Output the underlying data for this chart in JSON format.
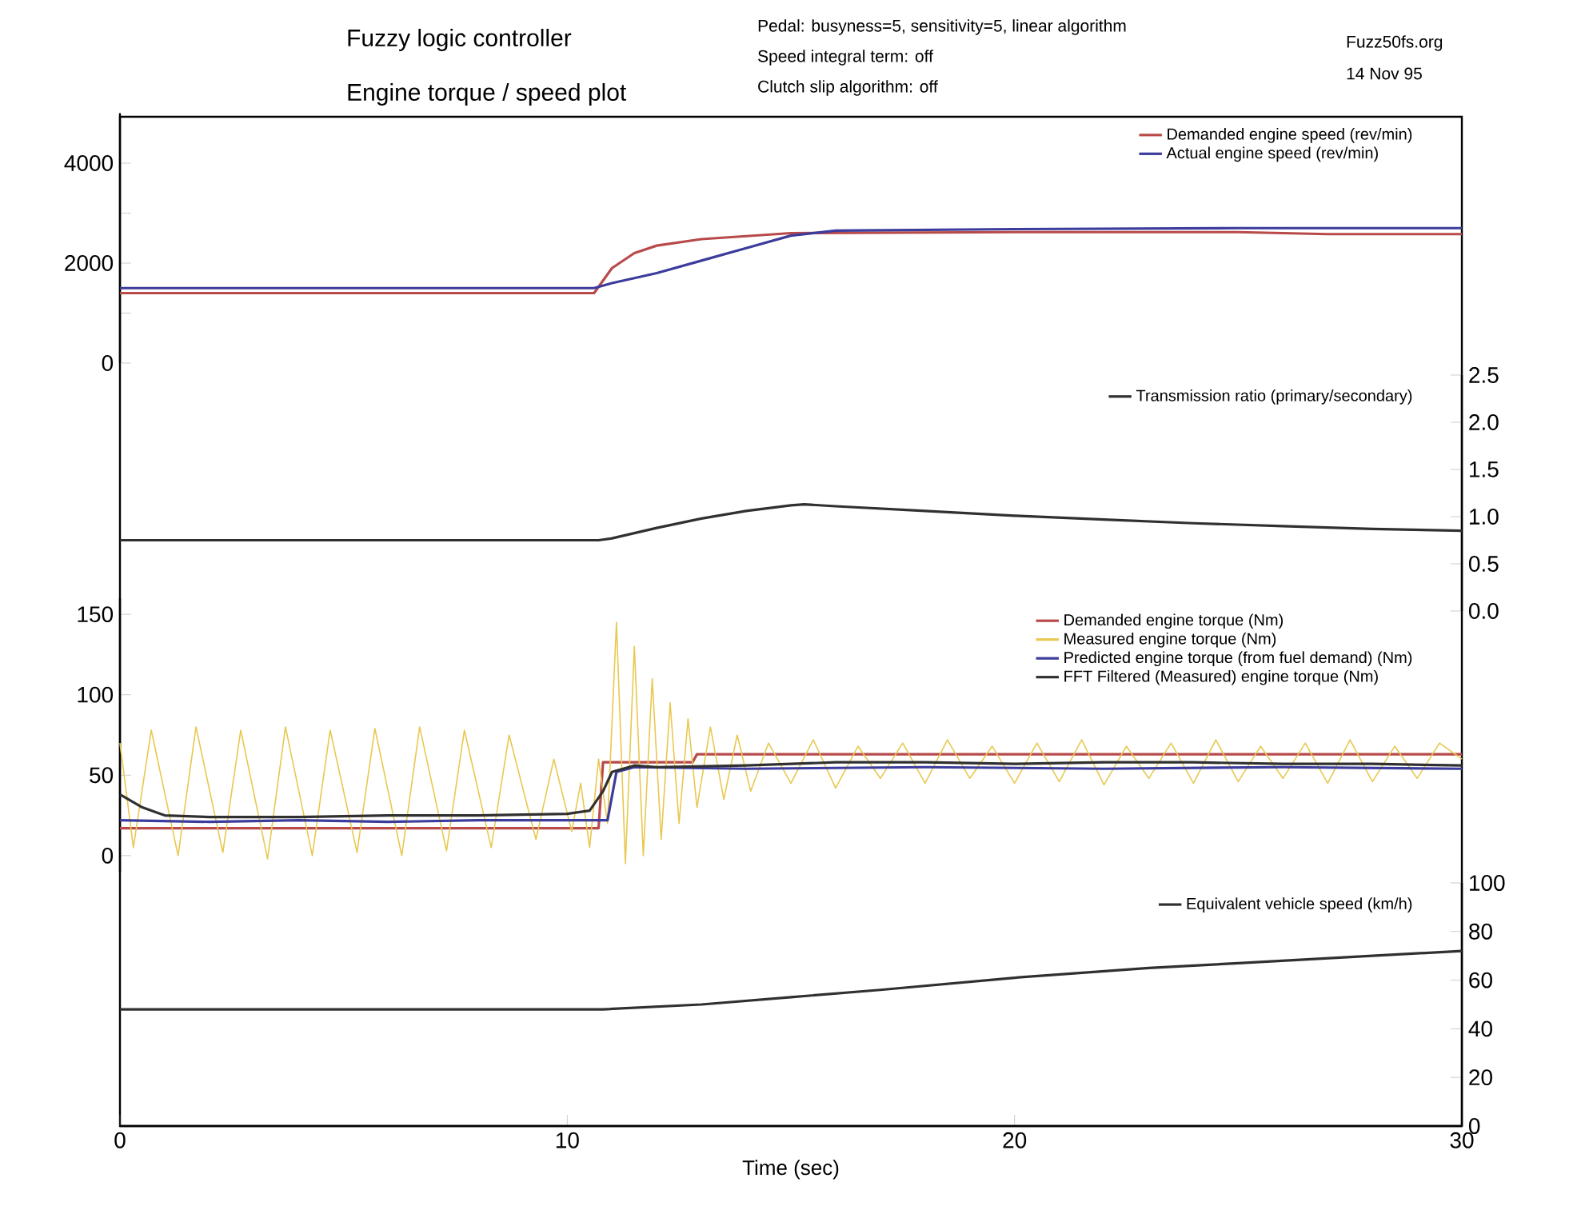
{
  "chart_data": [
    {
      "type": "line",
      "title": "Fuzzy logic controller",
      "subtitle": "Engine torque / speed plot",
      "annotations": [
        "Pedal: busyness=5, sensitivity=5, linear algorithm",
        "Speed integral term: off",
        "Clutch slip algorithm: off",
        "Fuzz50fs.org",
        "14 Nov 95"
      ],
      "xlim": [
        0,
        30
      ],
      "ylim": [
        0,
        5000
      ],
      "yticks": [
        0,
        {
          "value": 1000,
          "label": null
        },
        2000,
        {
          "value": 3000,
          "label": null
        },
        4000
      ],
      "tick_labels": "y",
      "legend": "top right",
      "marker": "none",
      "series": [
        {
          "name": "Demanded engine speed (rev/min)",
          "color": "#b84a4a",
          "x": [
            0,
            10.6,
            11,
            11.5,
            12,
            13,
            14,
            15,
            20,
            25,
            27,
            30
          ],
          "values": [
            1400,
            1400,
            1900,
            2200,
            2350,
            2480,
            2540,
            2600,
            2620,
            2620,
            2580,
            2580
          ]
        },
        {
          "name": "Actual engine speed (rev/min)",
          "color": "#3c3c9c",
          "x": [
            0,
            10.6,
            11,
            12,
            13,
            14,
            15,
            16,
            20,
            25,
            30
          ],
          "values": [
            1500,
            1500,
            1600,
            1800,
            2050,
            2300,
            2550,
            2650,
            2680,
            2700,
            2700
          ]
        }
      ]
    },
    {
      "type": "line",
      "xlim": [
        0,
        30
      ],
      "y2lim": [
        0,
        2.5
      ],
      "y2ticks": [
        {
          "value": 0,
          "label": "0.0"
        },
        {
          "value": 0.5,
          "label": "0.5"
        },
        {
          "value": 1,
          "label": "1.0"
        },
        {
          "value": 1.5,
          "label": "1.5"
        },
        {
          "value": 2,
          "label": "2.0"
        },
        {
          "value": 2.5,
          "label": "2.5"
        }
      ],
      "tick_labels": "y",
      "legend": "top right",
      "marker": "none",
      "series": [
        {
          "name": "Transmission ratio (primary/secondary)",
          "color": "#303030",
          "axis": "y2",
          "x": [
            0,
            10.7,
            11,
            12,
            13,
            14,
            15,
            15.3,
            16,
            18,
            20,
            22,
            24,
            26,
            28,
            30
          ],
          "values": [
            0.75,
            0.75,
            0.77,
            0.88,
            0.98,
            1.06,
            1.12,
            1.13,
            1.11,
            1.06,
            1.01,
            0.97,
            0.93,
            0.9,
            0.87,
            0.85
          ]
        }
      ]
    },
    {
      "type": "line",
      "xlim": [
        0,
        30
      ],
      "ylim": [
        -10,
        160
      ],
      "yticks": [
        0,
        50,
        100,
        150
      ],
      "tick_labels": "y",
      "legend": "top right",
      "marker": "none",
      "series": [
        {
          "name": "Demanded engine torque (Nm)",
          "color": "#b84a4a",
          "x": [
            0,
            10.7,
            10.8,
            12.8,
            12.9,
            30
          ],
          "values": [
            17,
            17,
            58,
            58,
            63,
            63
          ]
        },
        {
          "name": "Measured engine torque (Nm)",
          "color": "#e8c850",
          "x": [
            0,
            0.3,
            0.7,
            1.3,
            1.7,
            2.3,
            2.7,
            3.3,
            3.7,
            4.3,
            4.7,
            5.3,
            5.7,
            6.3,
            6.7,
            7.3,
            7.7,
            8.3,
            8.7,
            9.3,
            9.7,
            10.1,
            10.3,
            10.5,
            10.7,
            10.9,
            11.1,
            11.3,
            11.5,
            11.7,
            11.9,
            12.1,
            12.3,
            12.5,
            12.7,
            12.9,
            13.2,
            13.5,
            13.8,
            14.1,
            14.5,
            15,
            15.5,
            16,
            16.5,
            17,
            17.5,
            18,
            18.5,
            19,
            19.5,
            20,
            20.5,
            21,
            21.5,
            22,
            22.5,
            23,
            23.5,
            24,
            24.5,
            25,
            25.5,
            26,
            26.5,
            27,
            27.5,
            28,
            28.5,
            29,
            29.5,
            30
          ],
          "values": [
            70,
            5,
            78,
            0,
            80,
            2,
            78,
            -2,
            80,
            0,
            78,
            2,
            79,
            0,
            80,
            3,
            78,
            5,
            75,
            10,
            60,
            15,
            45,
            5,
            60,
            20,
            145,
            -5,
            130,
            0,
            110,
            10,
            95,
            20,
            85,
            30,
            80,
            35,
            75,
            40,
            70,
            45,
            72,
            42,
            68,
            48,
            70,
            45,
            72,
            48,
            68,
            45,
            70,
            46,
            72,
            44,
            68,
            48,
            70,
            45,
            72,
            46,
            68,
            48,
            70,
            45,
            72,
            46,
            68,
            48,
            70,
            60
          ]
        },
        {
          "name": "Predicted engine torque (from fuel demand) (Nm)",
          "color": "#3c3c9c",
          "x": [
            0,
            2,
            4,
            6,
            8,
            10,
            10.9,
            11.1,
            11.5,
            14,
            18,
            22,
            26,
            30
          ],
          "values": [
            22,
            21,
            22,
            21,
            22,
            22,
            22,
            52,
            55,
            54,
            55,
            54,
            55,
            54
          ]
        },
        {
          "name": "FFT Filtered (Measured) engine torque (Nm)",
          "color": "#303030",
          "x": [
            0,
            0.5,
            1,
            2,
            4,
            6,
            8,
            10,
            10.5,
            10.8,
            11,
            11.5,
            12,
            14,
            16,
            18,
            20,
            22,
            24,
            26,
            28,
            30
          ],
          "values": [
            38,
            30,
            25,
            24,
            24,
            25,
            25,
            26,
            28,
            40,
            52,
            56,
            55,
            56,
            58,
            58,
            57,
            58,
            58,
            57,
            57,
            56
          ]
        }
      ]
    },
    {
      "type": "line",
      "xlabel": "Time (sec)",
      "xlim": [
        0,
        30
      ],
      "xticks": [
        0,
        10,
        20,
        30
      ],
      "y2lim": [
        0,
        100
      ],
      "y2ticks": [
        0,
        20,
        40,
        60,
        80,
        100
      ],
      "legend": "top right",
      "marker": "none",
      "series": [
        {
          "name": "Equivalent vehicle speed (km/h)",
          "color": "#303030",
          "axis": "y2",
          "x": [
            0,
            10.8,
            13,
            15,
            17,
            20,
            23,
            25,
            28,
            30
          ],
          "values": [
            48,
            48,
            50,
            53,
            56,
            61,
            65,
            67,
            70,
            72
          ]
        }
      ]
    }
  ]
}
